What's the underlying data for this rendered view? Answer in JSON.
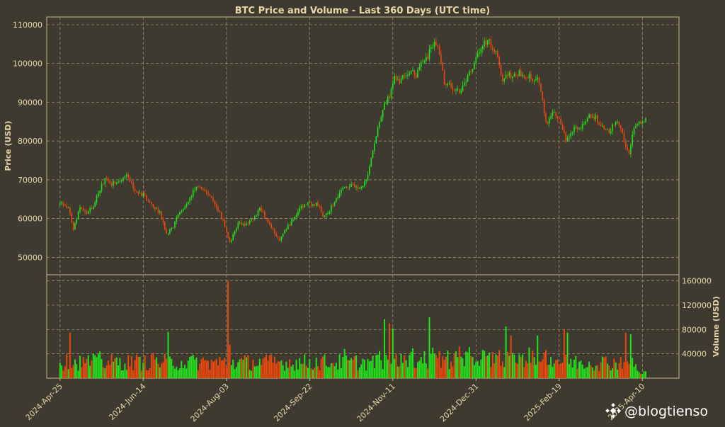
{
  "colors": {
    "background": "#3f3a30",
    "frame": "#c8b48a",
    "grid": "#a89878",
    "text": "#e8d6a8",
    "title": "#e8d6a8",
    "up": "#22e01c",
    "down": "#e8480e",
    "watermark": "#ffffff"
  },
  "watermark": {
    "text": "@blogtienso",
    "icon": "binance-logo-icon"
  },
  "chart_data": [
    {
      "type": "candlestick",
      "title": "BTC Price and Volume - Last 360 Days (UTC time)",
      "ylabel": "Price (USD)",
      "ylim": [
        45500,
        112000
      ],
      "yticks": [
        50000,
        60000,
        70000,
        80000,
        90000,
        100000,
        110000
      ],
      "x_range_days": [
        -8,
        372
      ],
      "xticks": [
        {
          "day": 0,
          "label": "2024-Apr-25"
        },
        {
          "day": 50,
          "label": "2024-Jun-14"
        },
        {
          "day": 100,
          "label": "2024-Aug-03"
        },
        {
          "day": 150,
          "label": "2024-Sep-22"
        },
        {
          "day": 200,
          "label": "2024-Nov-11"
        },
        {
          "day": 250,
          "label": "2024-Dec-31"
        },
        {
          "day": 300,
          "label": "2025-Feb-19"
        },
        {
          "day": 350,
          "label": "2025-Apr-10"
        }
      ],
      "grid": true,
      "close_anchors": [
        [
          0,
          64300
        ],
        [
          5,
          62500
        ],
        [
          8,
          57500
        ],
        [
          12,
          63000
        ],
        [
          16,
          61500
        ],
        [
          20,
          63500
        ],
        [
          24,
          67500
        ],
        [
          27,
          70500
        ],
        [
          31,
          69000
        ],
        [
          35,
          69500
        ],
        [
          40,
          71000
        ],
        [
          45,
          67500
        ],
        [
          50,
          66000
        ],
        [
          55,
          63500
        ],
        [
          60,
          61500
        ],
        [
          64,
          56000
        ],
        [
          68,
          58000
        ],
        [
          72,
          61500
        ],
        [
          75,
          63500
        ],
        [
          80,
          67000
        ],
        [
          84,
          68500
        ],
        [
          88,
          66500
        ],
        [
          92,
          64500
        ],
        [
          96,
          61500
        ],
        [
          100,
          57000
        ],
        [
          102,
          53500
        ],
        [
          104,
          56000
        ],
        [
          107,
          59000
        ],
        [
          112,
          58500
        ],
        [
          116,
          60000
        ],
        [
          120,
          62500
        ],
        [
          125,
          59500
        ],
        [
          130,
          55500
        ],
        [
          132,
          54000
        ],
        [
          136,
          57500
        ],
        [
          140,
          60000
        ],
        [
          145,
          63000
        ],
        [
          150,
          63800
        ],
        [
          155,
          63500
        ],
        [
          158,
          61000
        ],
        [
          162,
          62000
        ],
        [
          166,
          65500
        ],
        [
          170,
          67500
        ],
        [
          175,
          68500
        ],
        [
          180,
          67500
        ],
        [
          184,
          69500
        ],
        [
          186,
          74000
        ],
        [
          188,
          77000
        ],
        [
          192,
          85000
        ],
        [
          195,
          89000
        ],
        [
          198,
          91500
        ],
        [
          201,
          97000
        ],
        [
          204,
          95500
        ],
        [
          207,
          97500
        ],
        [
          211,
          98000
        ],
        [
          214,
          97000
        ],
        [
          218,
          101000
        ],
        [
          221,
          102000
        ],
        [
          225,
          106000
        ],
        [
          228,
          103000
        ],
        [
          231,
          95500
        ],
        [
          235,
          94000
        ],
        [
          240,
          92500
        ],
        [
          245,
          96500
        ],
        [
          250,
          101000
        ],
        [
          254,
          105000
        ],
        [
          258,
          105500
        ],
        [
          262,
          102500
        ],
        [
          266,
          96000
        ],
        [
          270,
          97000
        ],
        [
          275,
          97500
        ],
        [
          279,
          97000
        ],
        [
          283,
          96500
        ],
        [
          287,
          96000
        ],
        [
          290,
          91000
        ],
        [
          292,
          84500
        ],
        [
          296,
          87000
        ],
        [
          300,
          86000
        ],
        [
          304,
          80000
        ],
        [
          307,
          82000
        ],
        [
          310,
          83500
        ],
        [
          315,
          84000
        ],
        [
          318,
          87000
        ],
        [
          322,
          86000
        ],
        [
          326,
          84000
        ],
        [
          330,
          82500
        ],
        [
          334,
          85000
        ],
        [
          337,
          83000
        ],
        [
          340,
          79000
        ],
        [
          342,
          76500
        ],
        [
          345,
          83500
        ],
        [
          348,
          84500
        ],
        [
          352,
          85200
        ]
      ]
    },
    {
      "type": "bar",
      "ylabel": "Volume (USD)",
      "ylim": [
        0,
        170000
      ],
      "yticks": [
        40000,
        80000,
        120000,
        160000
      ],
      "spikes": [
        {
          "day": 6,
          "value": 75000
        },
        {
          "day": 24,
          "value": 44000
        },
        {
          "day": 56,
          "value": 41000
        },
        {
          "day": 65,
          "value": 76000
        },
        {
          "day": 101,
          "value": 160000
        },
        {
          "day": 101.5,
          "value": 55000
        },
        {
          "day": 171,
          "value": 48000
        },
        {
          "day": 195,
          "value": 97000
        },
        {
          "day": 198,
          "value": 90000
        },
        {
          "day": 200,
          "value": 82000
        },
        {
          "day": 212,
          "value": 49000
        },
        {
          "day": 222,
          "value": 100000
        },
        {
          "day": 224,
          "value": 50000
        },
        {
          "day": 240,
          "value": 52000
        },
        {
          "day": 268,
          "value": 85000
        },
        {
          "day": 271,
          "value": 70000
        },
        {
          "day": 287,
          "value": 70000
        },
        {
          "day": 303,
          "value": 80000
        },
        {
          "day": 305,
          "value": 75000
        },
        {
          "day": 340,
          "value": 75000
        },
        {
          "day": 343,
          "value": 72000
        }
      ]
    }
  ]
}
